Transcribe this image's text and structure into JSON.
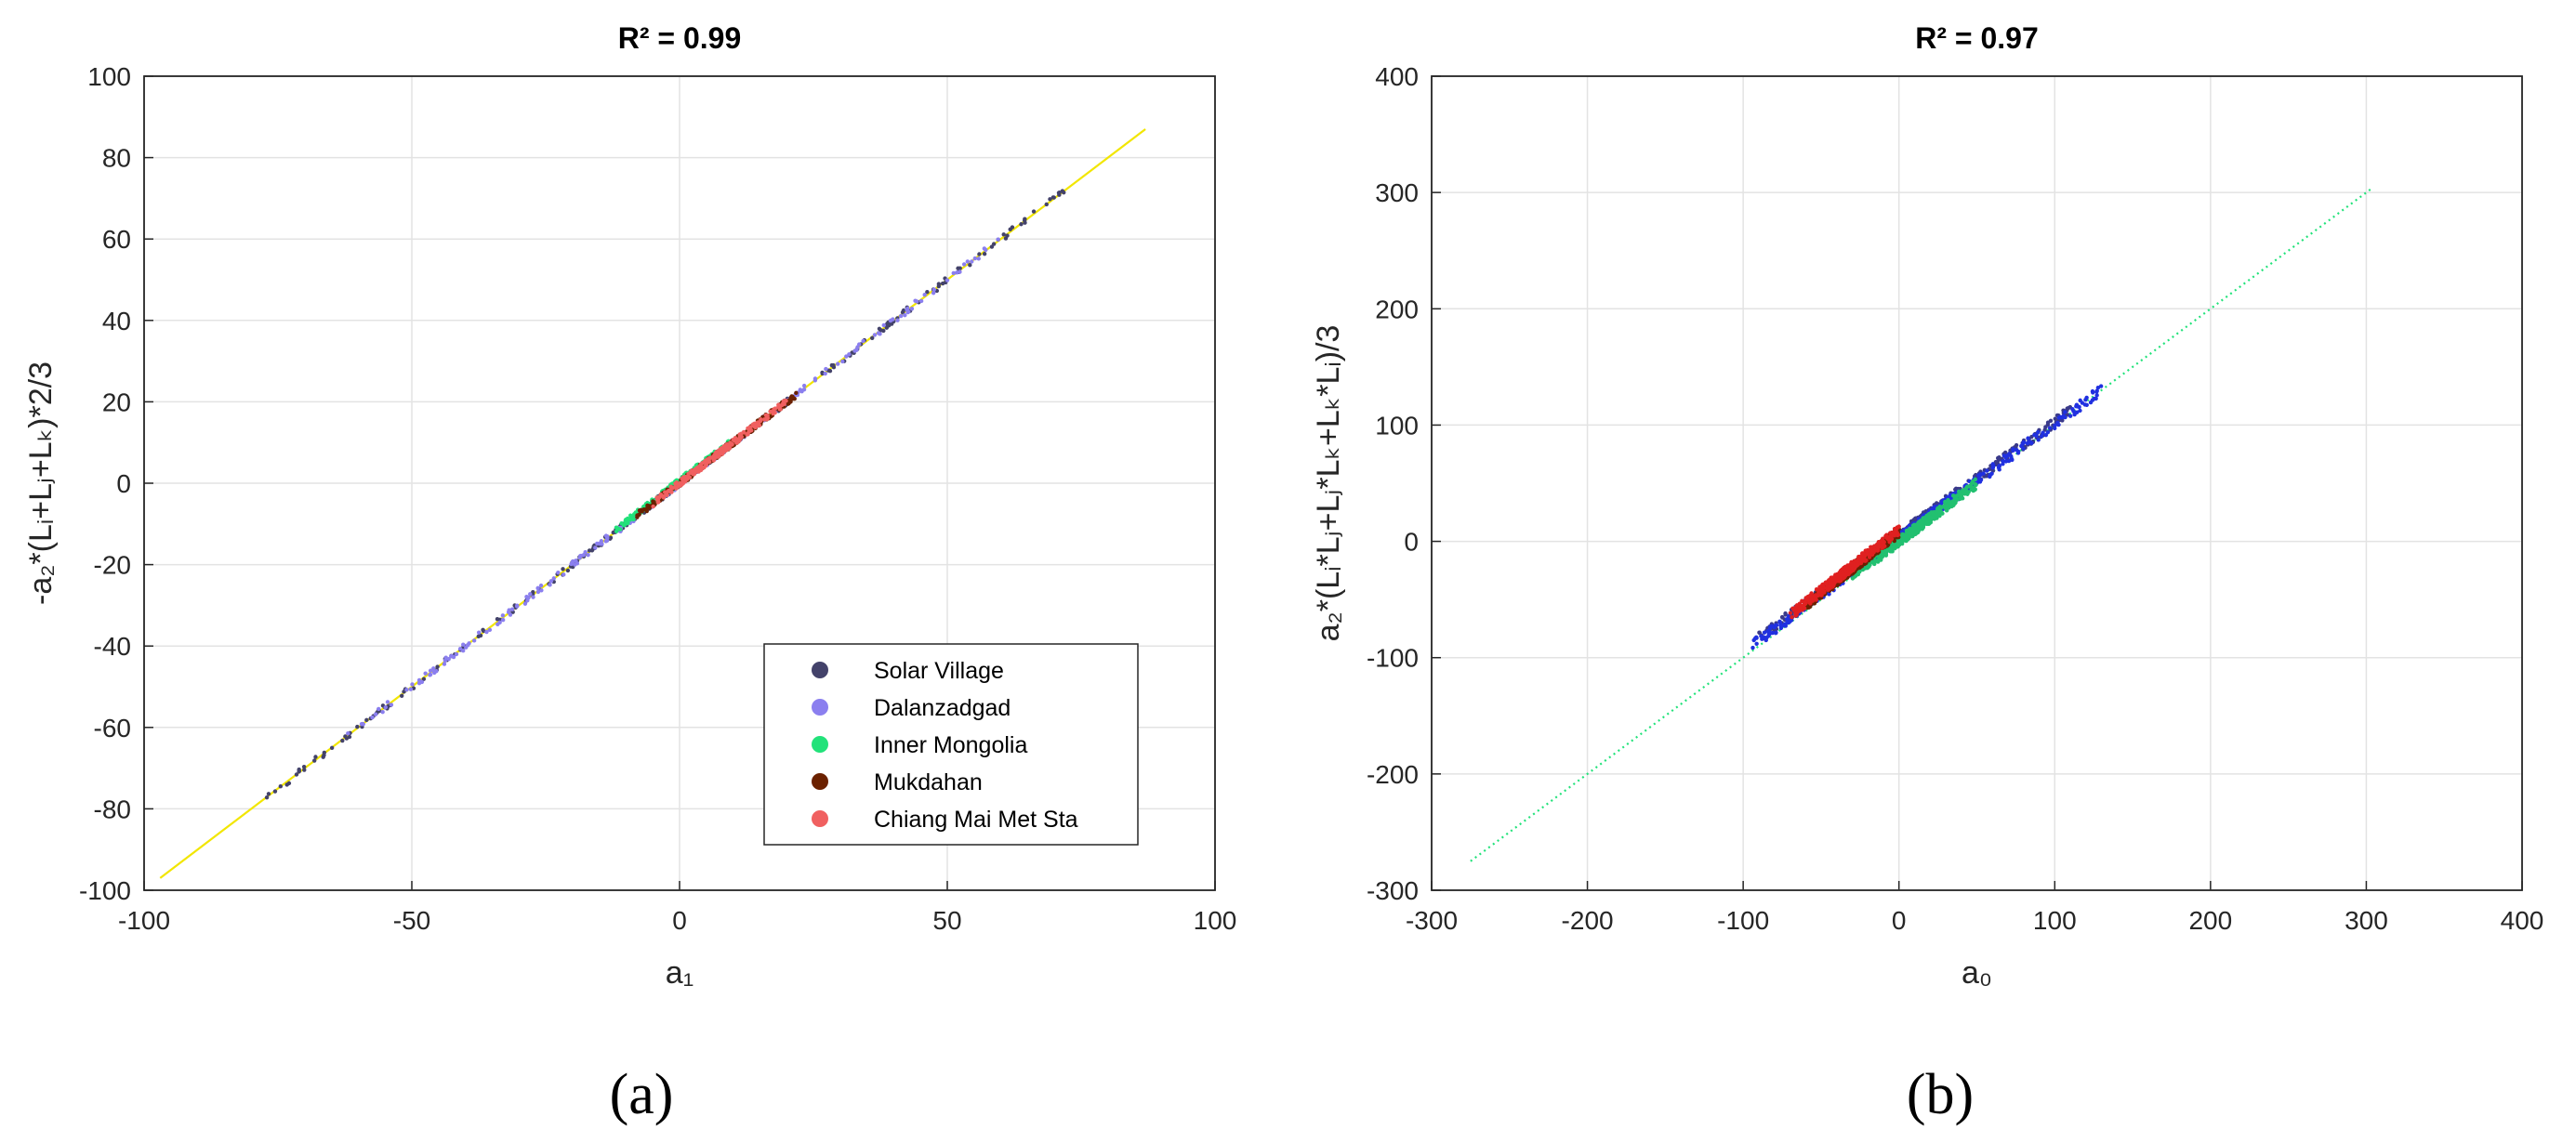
{
  "chart_data": [
    {
      "type": "scatter",
      "panel_label": "(a)",
      "title": "R² = 0.99",
      "xlabel": "a₁",
      "ylabel": "-a₂*(Lᵢ+Lⱼ+Lₖ)*2/3",
      "xlim": [
        -100,
        100
      ],
      "ylim": [
        -100,
        100
      ],
      "xticks": [
        "-100",
        "-50",
        "0",
        "50",
        "100"
      ],
      "yticks": [
        "100",
        "80",
        "60",
        "40",
        "20",
        "0",
        "-20",
        "-40",
        "-60",
        "-80",
        "-100"
      ],
      "grid": true,
      "legend_position": "bottom-right",
      "fit_line": {
        "color": "#f2e600",
        "x": [
          -97,
          87
        ],
        "y": [
          -97,
          87
        ]
      },
      "series": [
        {
          "name": "Solar Village",
          "color": "#43426a",
          "x_range": [
            -80,
            72
          ],
          "slope": 1.0,
          "offset": 0
        },
        {
          "name": "Dalanzadgad",
          "color": "#8b7fef",
          "x_range": [
            -62,
            60
          ],
          "slope": 1.0,
          "offset": 0
        },
        {
          "name": "Inner Mongolia",
          "color": "#22e27a",
          "x_range": [
            -12,
            10
          ],
          "slope": 1.0,
          "offset": 0.5
        },
        {
          "name": "Mukdahan",
          "color": "#6b2100",
          "x_range": [
            -8,
            22
          ],
          "slope": 1.0,
          "offset": 0
        },
        {
          "name": "Chiang Mai Met Sta",
          "color": "#f06060",
          "x_range": [
            -5,
            20
          ],
          "slope": 1.0,
          "offset": 0
        }
      ]
    },
    {
      "type": "scatter",
      "panel_label": "(b)",
      "title": "R² = 0.97",
      "xlabel": "a₀",
      "ylabel": "a₂*(Lᵢ*Lⱼ+Lⱼ*Lₖ+Lₖ*Lᵢ)/3",
      "xlim": [
        -300,
        400
      ],
      "ylim": [
        -300,
        400
      ],
      "xticks": [
        "-300",
        "-200",
        "-100",
        "0",
        "100",
        "200",
        "300",
        "400"
      ],
      "yticks": [
        "400",
        "300",
        "200",
        "100",
        "0",
        "-100",
        "-200",
        "-300"
      ],
      "grid": true,
      "fit_line": {
        "color": "#22e27a",
        "x": [
          -275,
          303
        ],
        "y": [
          -275,
          303
        ]
      },
      "series": [
        {
          "name": "Solar Village",
          "color": "#3a3a8a",
          "x_range": [
            -90,
            110
          ],
          "slope": 0.98,
          "offset": 5
        },
        {
          "name": "Dalanzadgad",
          "color": "#2030e0",
          "x_range": [
            -95,
            130
          ],
          "slope": 0.98,
          "offset": 3
        },
        {
          "name": "Inner Mongolia",
          "color": "#22c070",
          "x_range": [
            -30,
            50
          ],
          "slope": 1.0,
          "offset": 0
        },
        {
          "name": "Mukdahan",
          "color": "#6b2100",
          "x_range": [
            -60,
            0
          ],
          "slope": 1.05,
          "offset": 8
        },
        {
          "name": "Chiang Mai Met Sta",
          "color": "#e02020",
          "x_range": [
            -70,
            0
          ],
          "slope": 1.05,
          "offset": 10
        }
      ]
    }
  ]
}
